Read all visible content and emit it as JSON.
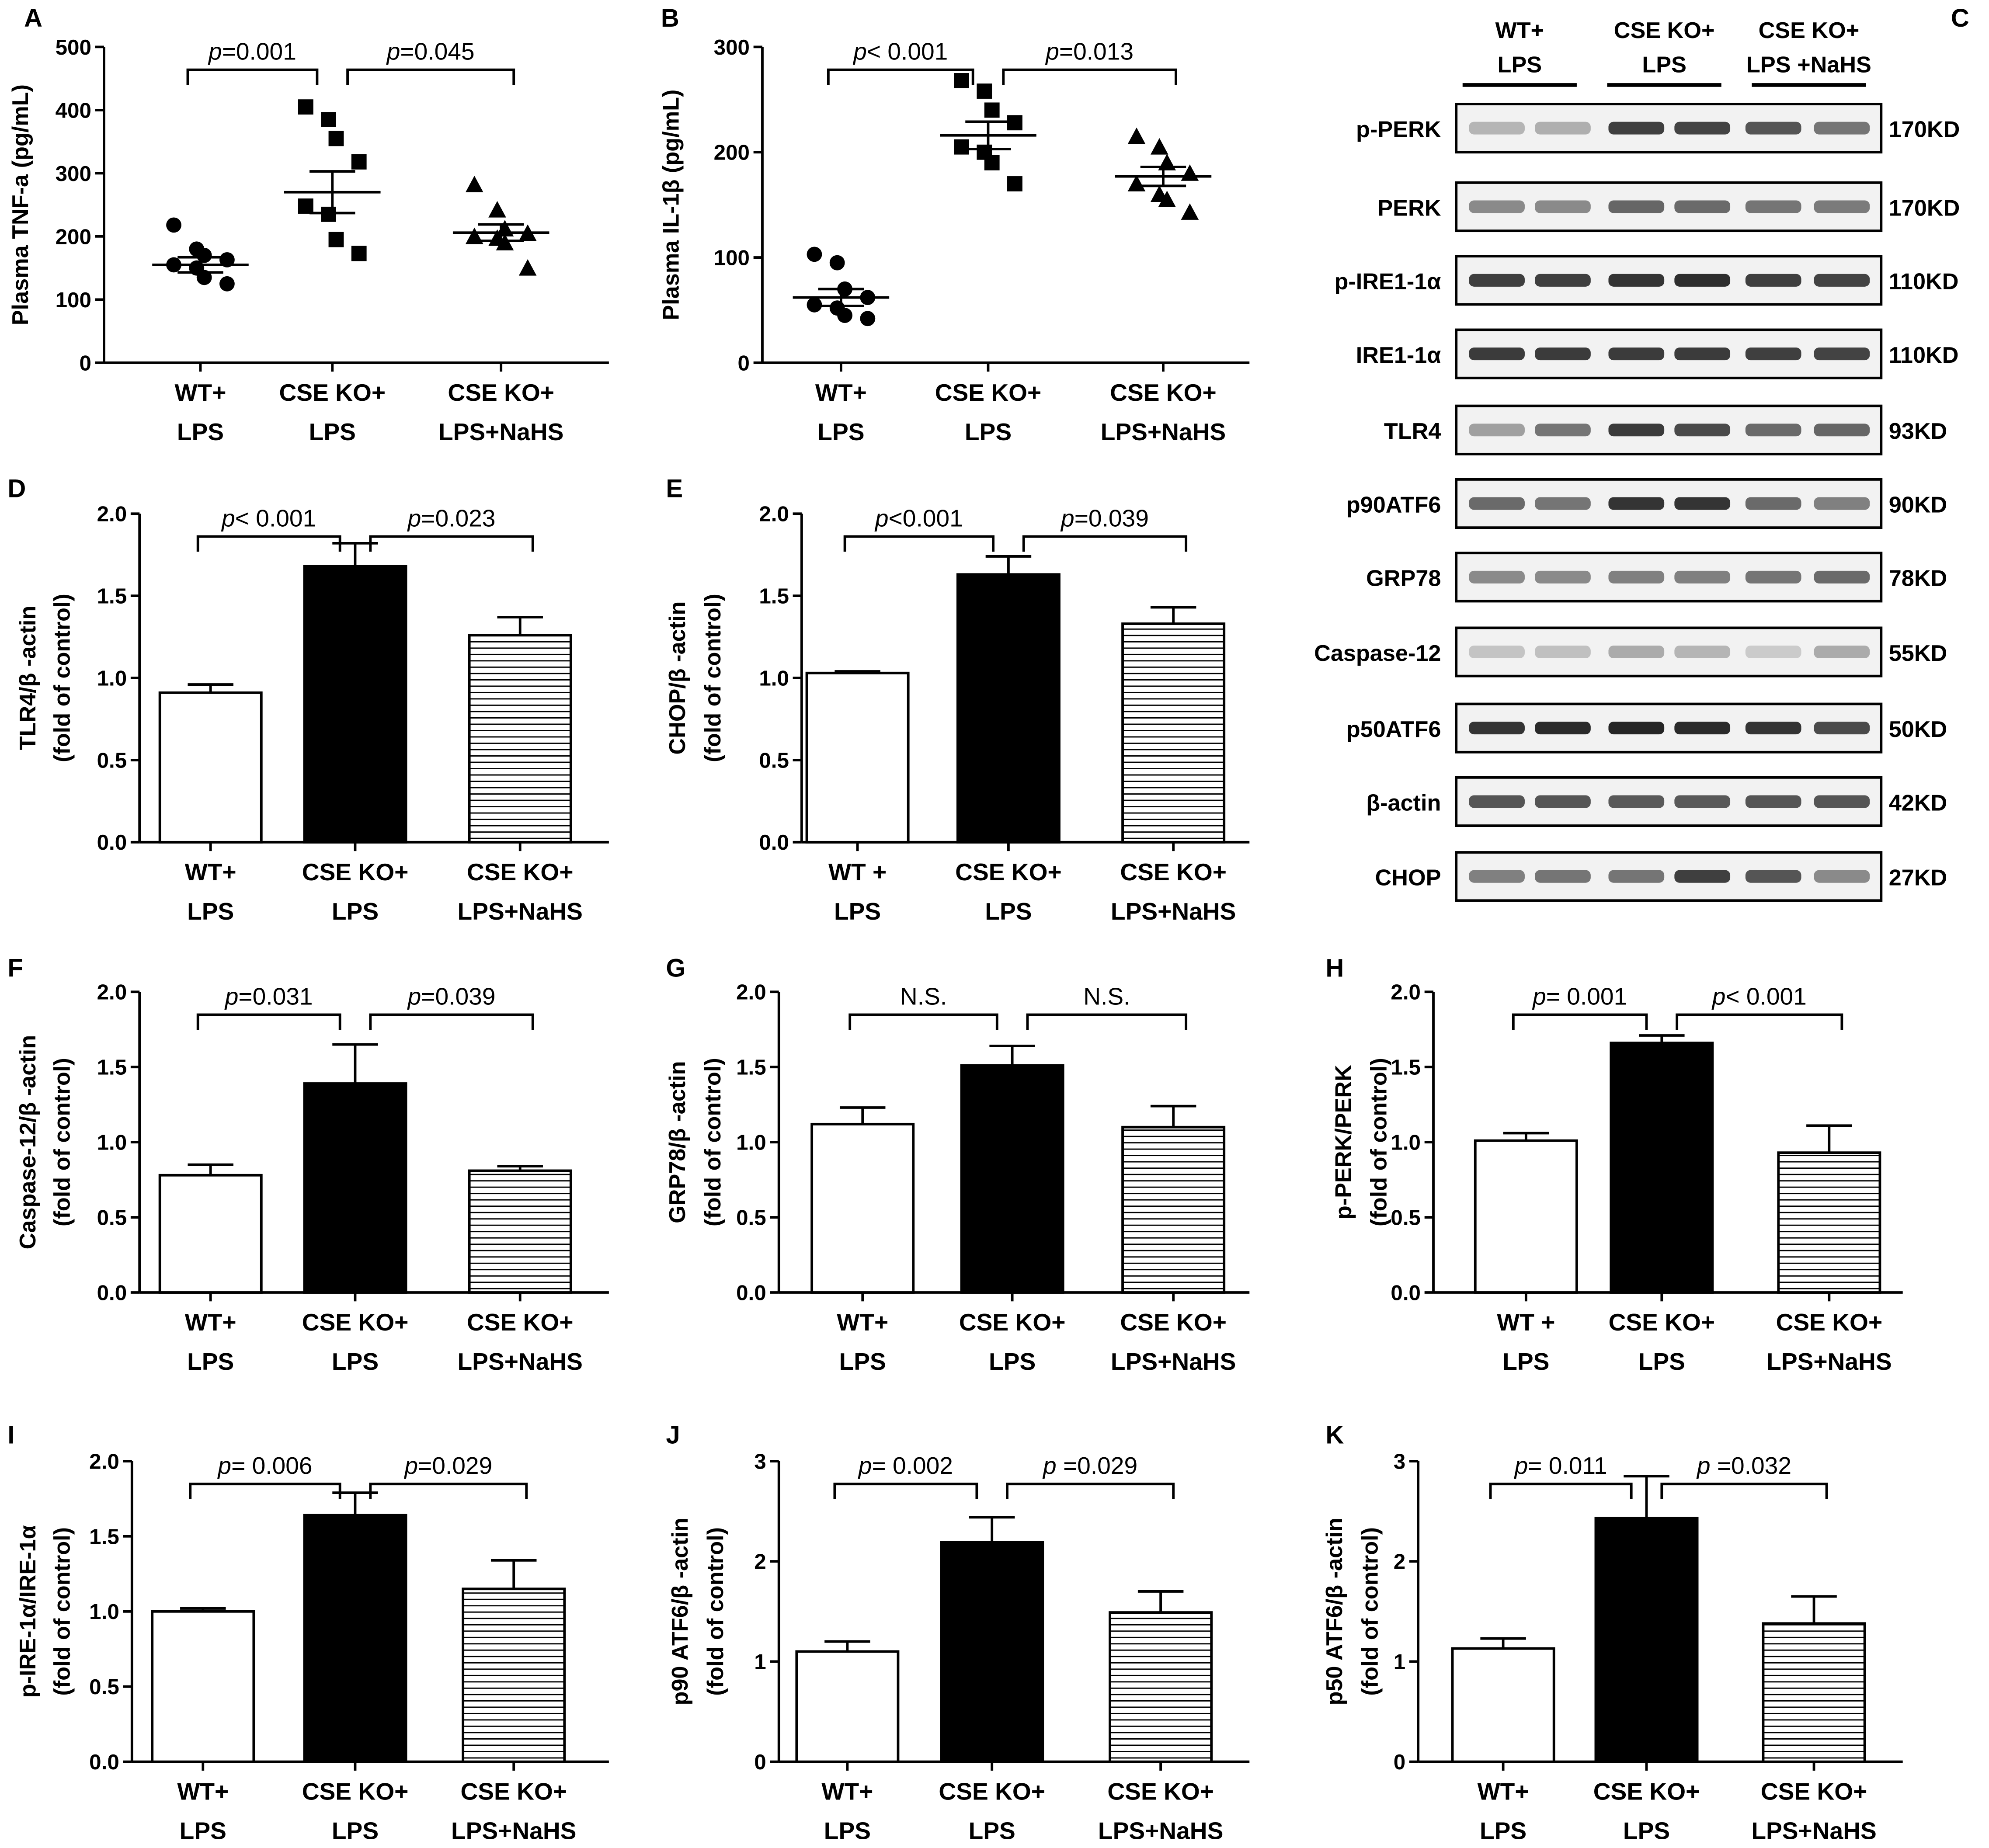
{
  "figure": {
    "panels_scatter": [
      {
        "letter": "A",
        "type": "scatter",
        "ylabel": "Plasma TNF-a (pg/mL)",
        "ylim": [
          0,
          500
        ],
        "yticks": [
          "0",
          "100",
          "200",
          "300",
          "400",
          "500"
        ],
        "groups": [
          {
            "label": [
              "WT+",
              "LPS"
            ],
            "marker": "circle",
            "mean": 155,
            "sem": 12,
            "points": [
              218,
              180,
              170,
              163,
              155,
              150,
              135,
              125
            ]
          },
          {
            "label": [
              "CSE KO+",
              "LPS"
            ],
            "marker": "square",
            "mean": 270,
            "sem": 33,
            "points": [
              405,
              385,
              355,
              318,
              248,
              235,
              195,
              173
            ]
          },
          {
            "label": [
              "CSE KO+",
              "LPS+NaHS"
            ],
            "marker": "triangle",
            "mean": 206,
            "sem": 13,
            "points": [
              282,
              242,
              212,
              205,
              200,
              197,
              190,
              150
            ]
          }
        ],
        "comparisons": [
          {
            "italic": "p",
            "value": "=0.001"
          },
          {
            "italic": "p",
            "value": "=0.045"
          }
        ]
      },
      {
        "letter": "B",
        "type": "scatter",
        "ylabel": "Plasma IL-1β (pg/mL)",
        "ylim": [
          0,
          300
        ],
        "yticks": [
          "0",
          "100",
          "200",
          "300"
        ],
        "groups": [
          {
            "label": [
              "WT+",
              "LPS"
            ],
            "marker": "circle",
            "mean": 62,
            "sem": 8,
            "points": [
              103,
              95,
              70,
              62,
              55,
              52,
              45,
              42
            ]
          },
          {
            "label": [
              "CSE KO+",
              "LPS"
            ],
            "marker": "square",
            "mean": 216,
            "sem": 13,
            "points": [
              268,
              258,
              240,
              228,
              205,
              200,
              190,
              170
            ]
          },
          {
            "label": [
              "CSE KO+",
              "LPS+NaHS"
            ],
            "marker": "triangle",
            "mean": 177,
            "sem": 9,
            "points": [
              215,
              205,
              190,
              180,
              170,
              160,
              155,
              143
            ]
          }
        ],
        "comparisons": [
          {
            "italic": "p",
            "value": "< 0.001"
          },
          {
            "italic": "p",
            "value": "=0.013"
          }
        ]
      }
    ],
    "panels_bar": [
      {
        "letter": "D",
        "type": "bar",
        "ylabel": [
          "TLR4/β -actin",
          "(fold of control)"
        ],
        "ylim": [
          0,
          2
        ],
        "yticks": [
          "0.0",
          "0.5",
          "1.0",
          "1.5",
          "2.0"
        ],
        "groups": [
          [
            "WT+",
            "LPS"
          ],
          [
            "CSE KO+",
            "LPS"
          ],
          [
            "CSE KO+",
            "LPS+NaHS"
          ]
        ],
        "values": [
          0.91,
          1.68,
          1.26
        ],
        "errors": [
          0.05,
          0.14,
          0.11
        ],
        "comparisons": [
          {
            "italic": "p",
            "value": "< 0.001"
          },
          {
            "italic": "p",
            "value": "=0.023"
          }
        ]
      },
      {
        "letter": "E",
        "type": "bar",
        "ylabel": [
          "CHOP/β -actin",
          "(fold of control)"
        ],
        "ylim": [
          0,
          2
        ],
        "yticks": [
          "0.0",
          "0.5",
          "1.0",
          "1.5",
          "2.0"
        ],
        "groups": [
          [
            "WT +",
            "LPS"
          ],
          [
            "CSE KO+",
            "LPS"
          ],
          [
            "CSE KO+",
            "LPS+NaHS"
          ]
        ],
        "values": [
          1.03,
          1.63,
          1.33
        ],
        "errors": [
          0.01,
          0.11,
          0.1
        ],
        "comparisons": [
          {
            "italic": "p",
            "value": "<0.001"
          },
          {
            "italic": "p",
            "value": "=0.039"
          }
        ]
      },
      {
        "letter": "F",
        "type": "bar",
        "ylabel": [
          "Caspase-12/β -actin",
          "(fold of control)"
        ],
        "ylim": [
          0,
          2
        ],
        "yticks": [
          "0.0",
          "0.5",
          "1.0",
          "1.5",
          "2.0"
        ],
        "groups": [
          [
            "WT+",
            "LPS"
          ],
          [
            "CSE KO+",
            "LPS"
          ],
          [
            "CSE KO+",
            "LPS+NaHS"
          ]
        ],
        "values": [
          0.78,
          1.39,
          0.81
        ],
        "errors": [
          0.07,
          0.26,
          0.03
        ],
        "comparisons": [
          {
            "italic": "p",
            "value": "=0.031"
          },
          {
            "italic": "p",
            "value": "=0.039"
          }
        ]
      },
      {
        "letter": "G",
        "type": "bar",
        "ylabel": [
          "GRP78/β -actin",
          "(fold of control)"
        ],
        "ylim": [
          0,
          2
        ],
        "yticks": [
          "0.0",
          "0.5",
          "1.0",
          "1.5",
          "2.0"
        ],
        "groups": [
          [
            "WT+",
            "LPS"
          ],
          [
            "CSE KO+",
            "LPS"
          ],
          [
            "CSE KO+",
            "LPS+NaHS"
          ]
        ],
        "values": [
          1.12,
          1.51,
          1.1
        ],
        "errors": [
          0.11,
          0.13,
          0.14
        ],
        "comparisons": [
          {
            "italic": "",
            "value": "N.S."
          },
          {
            "italic": "",
            "value": "N.S."
          }
        ]
      },
      {
        "letter": "H",
        "type": "bar",
        "ylabel": [
          "p-PERK/PERK",
          "(fold of control)"
        ],
        "ylim": [
          0,
          2
        ],
        "yticks": [
          "0.0",
          "0.5",
          "1.0",
          "1.5",
          "2.0"
        ],
        "groups": [
          [
            "WT +",
            "LPS"
          ],
          [
            "CSE KO+",
            "LPS"
          ],
          [
            "CSE KO+",
            "LPS+NaHS"
          ]
        ],
        "values": [
          1.01,
          1.66,
          0.93
        ],
        "errors": [
          0.05,
          0.05,
          0.18
        ],
        "comparisons": [
          {
            "italic": "p",
            "value": "= 0.001"
          },
          {
            "italic": "p",
            "value": "< 0.001"
          }
        ]
      },
      {
        "letter": "I",
        "type": "bar",
        "ylabel": [
          "p-IRE-1α/IRE-1α",
          "(fold of control)"
        ],
        "ylim": [
          0,
          2
        ],
        "yticks": [
          "0.0",
          "0.5",
          "1.0",
          "1.5",
          "2.0"
        ],
        "groups": [
          [
            "WT+",
            "LPS"
          ],
          [
            "CSE KO+",
            "LPS"
          ],
          [
            "CSE KO+",
            "LPS+NaHS"
          ]
        ],
        "values": [
          1.0,
          1.64,
          1.15
        ],
        "errors": [
          0.02,
          0.15,
          0.19
        ],
        "comparisons": [
          {
            "italic": "p",
            "value": "= 0.006"
          },
          {
            "italic": "p",
            "value": "=0.029"
          }
        ]
      },
      {
        "letter": "J",
        "type": "bar",
        "ylabel": [
          "p90 ATF6/β -actin",
          "(fold of control)"
        ],
        "ylim": [
          0,
          3
        ],
        "yticks": [
          "0",
          "1",
          "2",
          "3"
        ],
        "groups": [
          [
            "WT+",
            "LPS"
          ],
          [
            "CSE KO+",
            "LPS"
          ],
          [
            "CSE KO+",
            "LPS+NaHS"
          ]
        ],
        "values": [
          1.1,
          2.19,
          1.49
        ],
        "errors": [
          0.1,
          0.25,
          0.21
        ],
        "comparisons": [
          {
            "italic": "p",
            "value": "= 0.002"
          },
          {
            "italic": "p",
            "value": " =0.029"
          }
        ]
      },
      {
        "letter": "K",
        "type": "bar",
        "ylabel": [
          "p50 ATF6/β -actin",
          "(fold of control)"
        ],
        "ylim": [
          0,
          3
        ],
        "yticks": [
          "0",
          "1",
          "2",
          "3"
        ],
        "groups": [
          [
            "WT+",
            "LPS"
          ],
          [
            "CSE KO+",
            "LPS"
          ],
          [
            "CSE KO+",
            "LPS+NaHS"
          ]
        ],
        "values": [
          1.13,
          2.43,
          1.38
        ],
        "errors": [
          0.1,
          0.42,
          0.27
        ],
        "comparisons": [
          {
            "italic": "p",
            "value": "= 0.011"
          },
          {
            "italic": "p",
            "value": " =0.032"
          }
        ]
      }
    ],
    "blot": {
      "letter": "C",
      "headers": [
        [
          "WT+",
          "LPS"
        ],
        [
          "CSE KO+",
          "LPS"
        ],
        [
          "CSE KO+",
          "LPS +NaHS"
        ]
      ],
      "rows": [
        {
          "label": "p-PERK",
          "kd": "170KD",
          "intensity": [
            0.25,
            0.28,
            0.8,
            0.78,
            0.7,
            0.55
          ]
        },
        {
          "label": "PERK",
          "kd": "170KD",
          "intensity": [
            0.45,
            0.45,
            0.62,
            0.6,
            0.55,
            0.52
          ]
        },
        {
          "label": "p-IRE1-1α",
          "kd": "110KD",
          "intensity": [
            0.8,
            0.8,
            0.85,
            0.88,
            0.8,
            0.78
          ]
        },
        {
          "label": "IRE1-1α",
          "kd": "110KD",
          "intensity": [
            0.82,
            0.82,
            0.82,
            0.82,
            0.8,
            0.78
          ]
        },
        {
          "label": "TLR4",
          "kd": "93KD",
          "intensity": [
            0.35,
            0.55,
            0.82,
            0.75,
            0.6,
            0.62
          ]
        },
        {
          "label": "p90ATF6",
          "kd": "90KD",
          "intensity": [
            0.6,
            0.55,
            0.85,
            0.85,
            0.6,
            0.5
          ]
        },
        {
          "label": "GRP78",
          "kd": "78KD",
          "intensity": [
            0.45,
            0.45,
            0.5,
            0.5,
            0.55,
            0.6
          ]
        },
        {
          "label": "Caspase-12",
          "kd": "55KD",
          "intensity": [
            0.18,
            0.2,
            0.3,
            0.25,
            0.15,
            0.3
          ]
        },
        {
          "label": "p50ATF6",
          "kd": "50KD",
          "intensity": [
            0.85,
            0.9,
            0.92,
            0.9,
            0.85,
            0.75
          ]
        },
        {
          "label": "β-actin",
          "kd": "42KD",
          "intensity": [
            0.7,
            0.7,
            0.68,
            0.68,
            0.7,
            0.7
          ]
        },
        {
          "label": "CHOP",
          "kd": "27KD",
          "intensity": [
            0.5,
            0.55,
            0.55,
            0.8,
            0.7,
            0.45
          ]
        }
      ]
    }
  },
  "chart_data": [
    {
      "panel": "A",
      "type": "scatter",
      "ylabel": "Plasma TNF-a (pg/mL)",
      "ylim": [
        0,
        500
      ],
      "categories": [
        "WT+ LPS",
        "CSE KO+ LPS",
        "CSE KO+ LPS+NaHS"
      ],
      "series": [
        {
          "name": "WT+ LPS",
          "values": [
            218,
            180,
            170,
            163,
            155,
            150,
            135,
            125
          ]
        },
        {
          "name": "CSE KO+ LPS",
          "values": [
            405,
            385,
            355,
            318,
            248,
            235,
            195,
            173
          ]
        },
        {
          "name": "CSE KO+ LPS+NaHS",
          "values": [
            282,
            242,
            212,
            205,
            200,
            197,
            190,
            150
          ]
        }
      ],
      "means": [
        155,
        270,
        206
      ],
      "sem": [
        12,
        33,
        13
      ],
      "annotations": [
        "p=0.001",
        "p=0.045"
      ]
    },
    {
      "panel": "B",
      "type": "scatter",
      "ylabel": "Plasma IL-1β (pg/mL)",
      "ylim": [
        0,
        300
      ],
      "categories": [
        "WT+ LPS",
        "CSE KO+ LPS",
        "CSE KO+ LPS+NaHS"
      ],
      "series": [
        {
          "name": "WT+ LPS",
          "values": [
            103,
            95,
            70,
            62,
            55,
            52,
            45,
            42
          ]
        },
        {
          "name": "CSE KO+ LPS",
          "values": [
            268,
            258,
            240,
            228,
            205,
            200,
            190,
            170
          ]
        },
        {
          "name": "CSE KO+ LPS+NaHS",
          "values": [
            215,
            205,
            190,
            180,
            170,
            160,
            155,
            143
          ]
        }
      ],
      "means": [
        62,
        216,
        177
      ],
      "sem": [
        8,
        13,
        9
      ],
      "annotations": [
        "p< 0.001",
        "p=0.013"
      ]
    },
    {
      "panel": "D",
      "type": "bar",
      "ylabel": "TLR4/β -actin (fold of control)",
      "ylim": [
        0,
        2
      ],
      "categories": [
        "WT+ LPS",
        "CSE KO+ LPS",
        "CSE KO+ LPS+NaHS"
      ],
      "values": [
        0.91,
        1.68,
        1.26
      ],
      "errors": [
        0.05,
        0.14,
        0.11
      ]
    },
    {
      "panel": "E",
      "type": "bar",
      "ylabel": "CHOP/β -actin (fold of control)",
      "ylim": [
        0,
        2
      ],
      "categories": [
        "WT + LPS",
        "CSE KO+ LPS",
        "CSE KO+ LPS+NaHS"
      ],
      "values": [
        1.03,
        1.63,
        1.33
      ],
      "errors": [
        0.01,
        0.11,
        0.1
      ]
    },
    {
      "panel": "F",
      "type": "bar",
      "ylabel": "Caspase-12/β -actin (fold of control)",
      "ylim": [
        0,
        2
      ],
      "categories": [
        "WT+ LPS",
        "CSE KO+ LPS",
        "CSE KO+ LPS+NaHS"
      ],
      "values": [
        0.78,
        1.39,
        0.81
      ],
      "errors": [
        0.07,
        0.26,
        0.03
      ]
    },
    {
      "panel": "G",
      "type": "bar",
      "ylabel": "GRP78/β -actin (fold of control)",
      "ylim": [
        0,
        2
      ],
      "categories": [
        "WT+ LPS",
        "CSE KO+ LPS",
        "CSE KO+ LPS+NaHS"
      ],
      "values": [
        1.12,
        1.51,
        1.1
      ],
      "errors": [
        0.11,
        0.13,
        0.14
      ]
    },
    {
      "panel": "H",
      "type": "bar",
      "ylabel": "p-PERK/PERK (fold of control)",
      "ylim": [
        0,
        2
      ],
      "categories": [
        "WT + LPS",
        "CSE KO+ LPS",
        "CSE KO+ LPS+NaHS"
      ],
      "values": [
        1.01,
        1.66,
        0.93
      ],
      "errors": [
        0.05,
        0.05,
        0.18
      ]
    },
    {
      "panel": "I",
      "type": "bar",
      "ylabel": "p-IRE-1α/IRE-1α (fold of control)",
      "ylim": [
        0,
        2
      ],
      "categories": [
        "WT+ LPS",
        "CSE KO+ LPS",
        "CSE KO+ LPS+NaHS"
      ],
      "values": [
        1.0,
        1.64,
        1.15
      ],
      "errors": [
        0.02,
        0.15,
        0.19
      ]
    },
    {
      "panel": "J",
      "type": "bar",
      "ylabel": "p90 ATF6/β -actin (fold of control)",
      "ylim": [
        0,
        3
      ],
      "categories": [
        "WT+ LPS",
        "CSE KO+ LPS",
        "CSE KO+ LPS+NaHS"
      ],
      "values": [
        1.1,
        2.19,
        1.49
      ],
      "errors": [
        0.1,
        0.25,
        0.21
      ]
    },
    {
      "panel": "K",
      "type": "bar",
      "ylabel": "p50 ATF6/β -actin (fold of control)",
      "ylim": [
        0,
        3
      ],
      "categories": [
        "WT+ LPS",
        "CSE KO+ LPS",
        "CSE KO+ LPS+NaHS"
      ],
      "values": [
        1.13,
        2.43,
        1.38
      ],
      "errors": [
        0.1,
        0.42,
        0.27
      ]
    }
  ]
}
